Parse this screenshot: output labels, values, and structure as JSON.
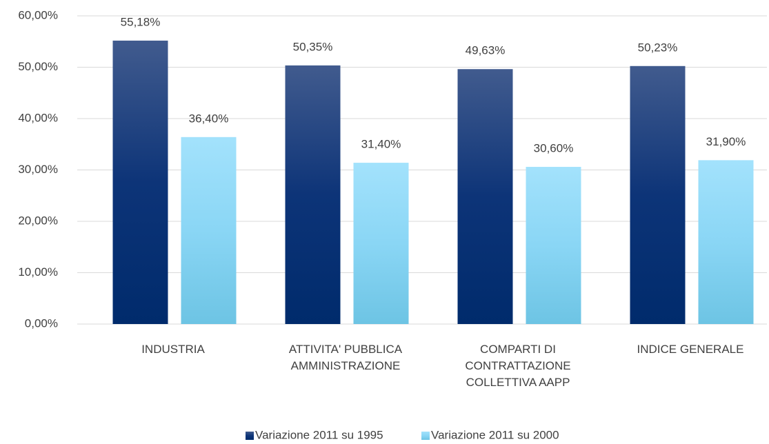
{
  "chart_data": {
    "type": "bar",
    "categories": [
      "INDUSTRIA",
      "ATTIVITA' PUBBLICA AMMINISTRAZIONE",
      "COMPARTI DI CONTRATTAZIONE COLLETTIVA AAPP",
      "INDICE GENERALE"
    ],
    "series": [
      {
        "name": "Variazione 2011 su 1995",
        "color": "#16387a",
        "values": [
          55.18,
          50.35,
          49.63,
          50.23
        ],
        "value_labels": [
          "55,18%",
          "50,35%",
          "49,63%",
          "50,23%"
        ]
      },
      {
        "name": "Variazione 2011 su 2000",
        "color": "#8fd8f7",
        "values": [
          36.4,
          31.4,
          30.6,
          31.9
        ],
        "value_labels": [
          "36,40%",
          "31,40%",
          "30,60%",
          "31,90%"
        ]
      }
    ],
    "ylim": [
      0,
      60
    ],
    "yticks": [
      {
        "value": 0,
        "label": "0,00%"
      },
      {
        "value": 10,
        "label": "10,00%"
      },
      {
        "value": 20,
        "label": "20,00%"
      },
      {
        "value": 30,
        "label": "30,00%"
      },
      {
        "value": 40,
        "label": "40,00%"
      },
      {
        "value": 50,
        "label": "50,00%"
      },
      {
        "value": 60,
        "label": "60,00%"
      }
    ],
    "grid": true,
    "legend": "bottom"
  }
}
